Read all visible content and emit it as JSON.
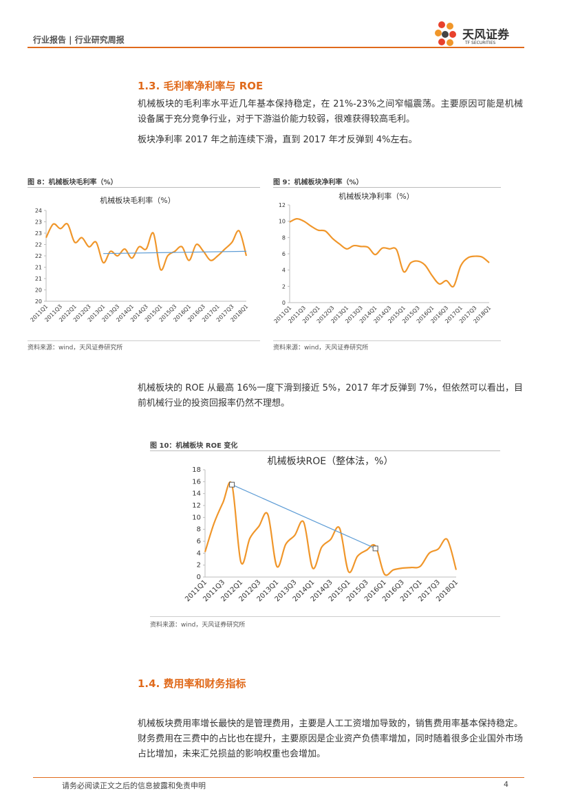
{
  "header": {
    "title": "行业报告 | 行业研究周报",
    "logo_name": "天风证券",
    "logo_sub": "TF SECURITIES"
  },
  "sections": [
    {
      "heading": "1.3. 毛利率净利率与 ROE",
      "paragraphs": [
        "机械板块的毛利率水平近几年基本保持稳定，在 21%-23%之间窄幅震荡。主要原因可能是机械设备属于充分竞争行业，对于下游溢价能力较弱，很难获得较高毛利。",
        "板块净利率 2017 年之前连续下滑，直到 2017 年才反弹到 4%左右。"
      ]
    },
    {
      "paragraphs": [
        "机械板块的 ROE 从最高 16%一度下滑到接近 5%，2017 年才反弹到 7%，但依然可以看出，目前机械行业的投资回报率仍然不理想。"
      ]
    },
    {
      "heading": "1.4. 费用率和财务指标",
      "paragraphs": [
        "机械板块费用率增长最快的是管理费用，主要是人工工资增加导致的，销售费用率基本保持稳定。财务费用在三费中的占比也在提升，主要原因是企业资产负债率增加，同时随着很多企业国外市场占比增加，未来汇兑损益的影响权重也会增加。"
      ]
    }
  ],
  "figures": [
    {
      "caption": "图 8：机械板块毛利率（%）",
      "source": "资料来源：wind，天风证券研究所",
      "chart": {
        "type": "line",
        "title": "机械板块毛利率（%）",
        "categories": [
          "2011Q1",
          null,
          "2011Q3",
          null,
          "2012Q1",
          null,
          "2012Q3",
          null,
          "2013Q1",
          null,
          "2013Q3",
          null,
          "2014Q1",
          null,
          "2014Q3",
          null,
          "2015Q1",
          null,
          "2015Q3",
          null,
          "2016Q1",
          null,
          "2016Q3",
          null,
          "2017Q1",
          null,
          "2017Q3",
          null,
          "2018Q1"
        ],
        "series": [
          {
            "color": "#f0962a",
            "values": [
              22.8,
              23.4,
              23.2,
              23.4,
              22.6,
              22.8,
              22.4,
              22.6,
              21.7,
              22.2,
              22.0,
              22.3,
              21.9,
              22.4,
              22.3,
              23.0,
              21.4,
              22.0,
              22.2,
              22.4,
              21.8,
              22.5,
              22.2,
              21.8,
              22.0,
              22.3,
              22.6,
              23.1,
              22.0
            ]
          }
        ],
        "trend_line": {
          "color": "#5b9bd5",
          "start_index": 8,
          "start_value": 22.1,
          "end_index": 28,
          "end_value": 22.2,
          "markers": false
        },
        "ylim": [
          20,
          24
        ],
        "yticks": [
          20,
          {
            "value": 20.5,
            "label": "20"
          },
          21,
          {
            "value": 21.5,
            "label": "21"
          },
          22,
          {
            "value": 22.5,
            "label": "22"
          },
          23,
          {
            "value": 23.5,
            "label": "23"
          },
          24
        ]
      }
    },
    {
      "caption": "图 9：机械板块净利率（%）",
      "source": "资料来源：wind，天风证券研究所",
      "chart": {
        "type": "line",
        "title": "机械板块净利率（%）",
        "categories": [
          "2011Q1",
          null,
          "2011Q3",
          null,
          "2012Q1",
          null,
          "2012Q3",
          null,
          "2013Q1",
          null,
          "2013Q3",
          null,
          "2014Q1",
          null,
          "2014Q3",
          null,
          "2015Q1",
          null,
          "2015Q3",
          null,
          "2016Q1",
          null,
          "2016Q3",
          null,
          "2017Q1",
          null,
          "2017Q3",
          null,
          "2018Q1"
        ],
        "series": [
          {
            "color": "#f0962a",
            "values": [
              9.9,
              10.3,
              10.0,
              9.4,
              8.9,
              8.8,
              7.9,
              7.2,
              6.6,
              7.0,
              6.9,
              6.8,
              5.9,
              6.7,
              6.6,
              6.5,
              3.8,
              4.9,
              5.1,
              4.6,
              3.3,
              2.3,
              2.7,
              2.0,
              4.5,
              5.5,
              5.7,
              5.6,
              4.9
            ]
          }
        ],
        "ylim": [
          0,
          12
        ],
        "yticks": [
          0,
          2,
          4,
          6,
          8,
          10,
          12
        ]
      }
    },
    {
      "caption": "图 10：机械板块 ROE 变化",
      "source": "资料来源：wind，天风证券研究所",
      "chart": {
        "type": "line",
        "title": "机械板块ROE（整体法，%）",
        "categories": [
          "2011Q1",
          null,
          "2011Q3",
          null,
          "2012Q1",
          null,
          "2012Q3",
          null,
          "2013Q1",
          null,
          "2013Q3",
          null,
          "2014Q1",
          null,
          "2014Q3",
          null,
          "2015Q1",
          null,
          "2015Q3",
          null,
          "2016Q1",
          null,
          "2016Q3",
          null,
          "2017Q1",
          null,
          "2017Q3",
          null,
          "2018Q1"
        ],
        "series": [
          {
            "color": "#f0962a",
            "values": [
              4.2,
              9.0,
              12.5,
              15.5,
              2.5,
              6.5,
              8.5,
              10.5,
              1.8,
              5.5,
              7.0,
              9.2,
              1.5,
              5.0,
              6.3,
              8.2,
              0.9,
              3.5,
              4.5,
              5.2,
              0.5,
              1.2,
              1.5,
              1.6,
              1.8,
              4.0,
              4.7,
              6.3,
              1.2
            ]
          }
        ],
        "trend_line": {
          "color": "#5b9bd5",
          "start_index": 3,
          "start_value": 15.5,
          "end_index": 19,
          "end_value": 4.8,
          "markers": true
        },
        "ylim": [
          0,
          18
        ],
        "yticks": [
          0,
          2,
          4,
          6,
          8,
          10,
          12,
          14,
          16,
          18
        ]
      }
    }
  ],
  "footer": {
    "disclaimer": "请务必阅读正文之后的信息披露和免责申明",
    "page": "4"
  }
}
